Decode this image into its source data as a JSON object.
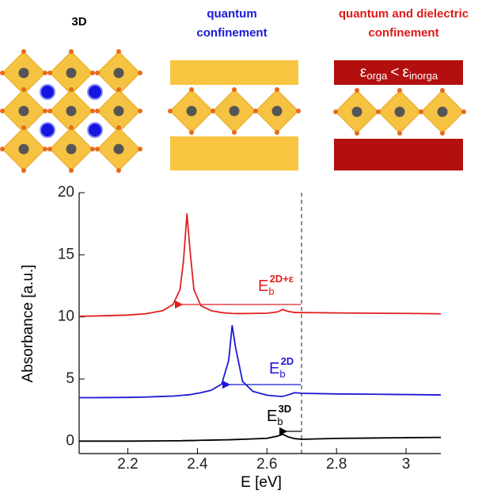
{
  "diagram": {
    "panels": [
      {
        "title_lines": [
          "3D"
        ],
        "color": "#000000"
      },
      {
        "title_lines": [
          "quantum",
          "confinement"
        ],
        "color": "#1a1ad4"
      },
      {
        "title_lines": [
          "quantum and dielectric",
          "confinement"
        ],
        "color": "#e01818"
      }
    ],
    "epsilon_label": {
      "eps1": "ε",
      "sub1": "orga",
      "rel": "<",
      "eps2": "ε",
      "sub2": "inorga"
    }
  },
  "chart_data": {
    "type": "line",
    "xlabel": "E [eV]",
    "ylabel": "Absorbance [a.u.]",
    "x": [
      2.06,
      2.1,
      2.2,
      2.25,
      2.3,
      2.33,
      2.35,
      2.36,
      2.37,
      2.38,
      2.39,
      2.41,
      2.44,
      2.47,
      2.49,
      2.5,
      2.51,
      2.53,
      2.56,
      2.6,
      2.63,
      2.645,
      2.66,
      2.68,
      2.7,
      2.8,
      2.9,
      3.0,
      3.1
    ],
    "series": [
      {
        "name": "2D+ε",
        "color": "#e02020",
        "values": [
          10.05,
          10.07,
          10.15,
          10.25,
          10.5,
          11.0,
          12.2,
          14.5,
          18.3,
          15.0,
          12.2,
          10.9,
          10.5,
          10.35,
          10.3,
          10.28,
          10.27,
          10.27,
          10.28,
          10.3,
          10.4,
          10.6,
          10.45,
          10.35,
          10.35,
          10.32,
          10.3,
          10.28,
          10.25
        ]
      },
      {
        "name": "2D",
        "color": "#1a1ad4",
        "values": [
          3.5,
          3.5,
          3.52,
          3.55,
          3.6,
          3.63,
          3.67,
          3.7,
          3.72,
          3.75,
          3.8,
          3.9,
          4.1,
          4.6,
          6.5,
          9.3,
          7.5,
          4.8,
          4.0,
          3.7,
          3.62,
          3.6,
          3.72,
          3.9,
          3.85,
          3.8,
          3.78,
          3.75,
          3.72
        ]
      },
      {
        "name": "3D",
        "color": "#000000",
        "values": [
          0,
          0,
          0,
          0.01,
          0.02,
          0.03,
          0.03,
          0.04,
          0.04,
          0.05,
          0.05,
          0.07,
          0.08,
          0.1,
          0.11,
          0.12,
          0.13,
          0.15,
          0.18,
          0.23,
          0.4,
          0.55,
          0.35,
          0.2,
          0.15,
          0.22,
          0.25,
          0.28,
          0.3
        ]
      }
    ],
    "xlim": [
      2.06,
      3.1
    ],
    "ylim": [
      -1,
      20
    ],
    "xticks": [
      2.2,
      2.4,
      2.6,
      2.8,
      3
    ],
    "yticks": [
      0,
      5,
      10,
      15,
      20
    ],
    "annotations": [
      {
        "main": "E",
        "sub": "b",
        "sup": "2D+ε"
      },
      {
        "main": "E",
        "sub": "b",
        "sup": "2D"
      },
      {
        "main": "E",
        "sub": "b",
        "sup": "3D"
      }
    ]
  }
}
